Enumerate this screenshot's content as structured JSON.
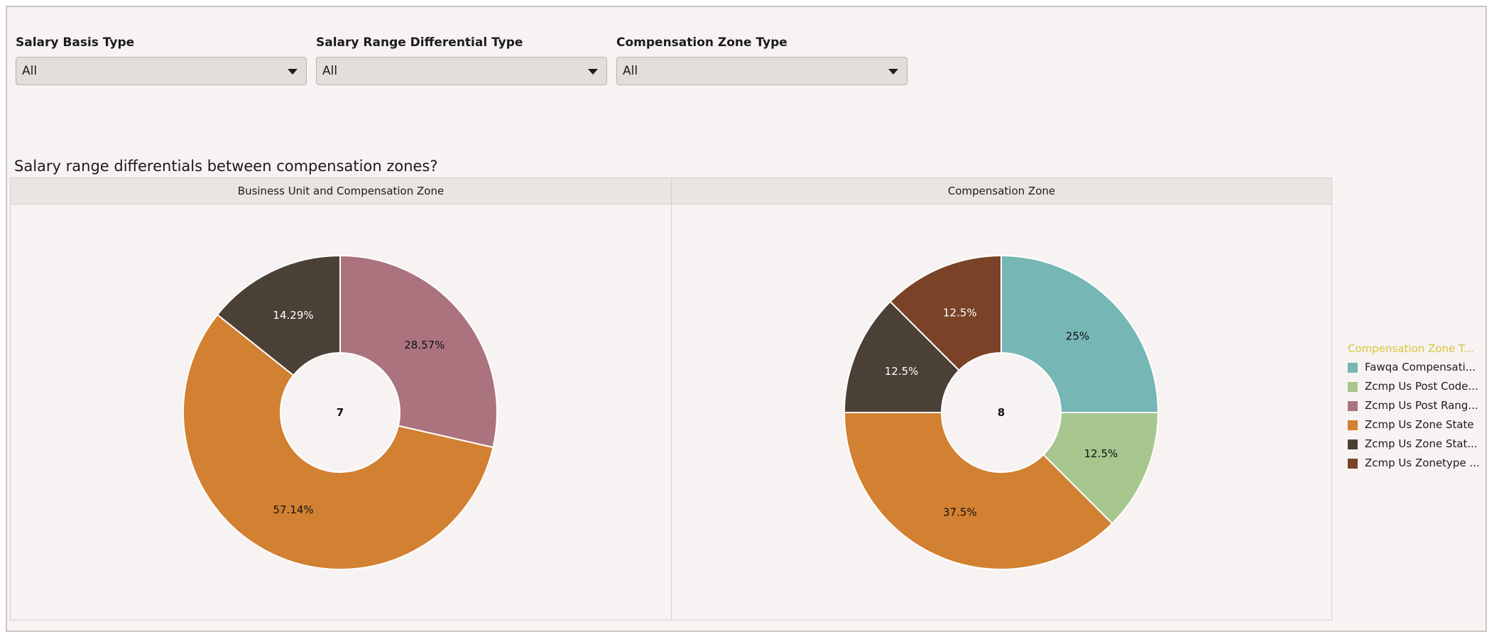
{
  "filters": [
    {
      "label": "Salary Basis Type",
      "value": "All"
    },
    {
      "label": "Salary Range Differential Type",
      "value": "All"
    },
    {
      "label": "Compensation Zone Type",
      "value": "All"
    }
  ],
  "question": "Salary range differentials between compensation zones?",
  "legend": {
    "title": "Compensation Zone T...",
    "items": [
      {
        "label": "Fawqa Compensati...",
        "color": "#76b6b5"
      },
      {
        "label": "Zcmp Us Post Code...",
        "color": "#a6c68d"
      },
      {
        "label": "Zcmp Us Post Rang...",
        "color": "#ab737e"
      },
      {
        "label": "Zcmp Us Zone State",
        "color": "#d28031"
      },
      {
        "label": "Zcmp Us Zone Stat...",
        "color": "#4b4036"
      },
      {
        "label": "Zcmp Us Zonetype ...",
        "color": "#7a4327"
      }
    ]
  },
  "chart_data": [
    {
      "type": "pie",
      "title": "Business Unit and Compensation Zone",
      "total": "7",
      "slices": [
        {
          "name": "Zcmp Us Post Rang...",
          "value": 28.57,
          "label": "28.57%",
          "color": "#ab737e",
          "label_color": "#111111"
        },
        {
          "name": "Zcmp Us Zone State",
          "value": 57.14,
          "label": "57.14%",
          "color": "#d28031",
          "label_color": "#111111"
        },
        {
          "name": "Zcmp Us Zone Stat...",
          "value": 14.29,
          "label": "14.29%",
          "color": "#4b4036",
          "label_color": "#ffffff"
        }
      ]
    },
    {
      "type": "pie",
      "title": "Compensation Zone",
      "total": "8",
      "slices": [
        {
          "name": "Fawqa Compensati...",
          "value": 25,
          "label": "25%",
          "color": "#76b6b5",
          "label_color": "#111111"
        },
        {
          "name": "Zcmp Us Post Code...",
          "value": 12.5,
          "label": "12.5%",
          "color": "#a6c68d",
          "label_color": "#111111"
        },
        {
          "name": "Zcmp Us Zone State",
          "value": 37.5,
          "label": "37.5%",
          "color": "#d28031",
          "label_color": "#111111"
        },
        {
          "name": "Zcmp Us Zone Stat...",
          "value": 12.5,
          "label": "12.5%",
          "color": "#4b4036",
          "label_color": "#ffffff"
        },
        {
          "name": "Zcmp Us Zonetype ...",
          "value": 12.5,
          "label": "12.5%",
          "color": "#7a4327",
          "label_color": "#ffffff"
        }
      ]
    }
  ]
}
